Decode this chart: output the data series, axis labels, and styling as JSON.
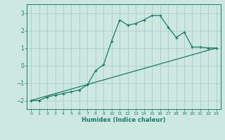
{
  "title": "",
  "xlabel": "Humidex (Indice chaleur)",
  "ylabel": "",
  "bg_color": "#cce8e0",
  "grid_color": "#aaccC4",
  "line_color": "#1a7a6a",
  "xlim": [
    -0.5,
    23.5
  ],
  "ylim": [
    -2.5,
    3.5
  ],
  "xticks": [
    0,
    1,
    2,
    3,
    4,
    5,
    6,
    7,
    8,
    9,
    10,
    11,
    12,
    13,
    14,
    15,
    16,
    17,
    18,
    19,
    20,
    21,
    22,
    23
  ],
  "yticks": [
    -2,
    -1,
    0,
    1,
    2,
    3
  ],
  "line1_x": [
    0,
    1,
    2,
    3,
    4,
    5,
    6,
    7,
    8,
    9,
    10,
    11,
    12,
    13,
    14,
    15,
    16,
    17,
    18,
    19,
    20,
    21,
    22,
    23
  ],
  "line1_y": [
    -2.0,
    -2.0,
    -1.8,
    -1.7,
    -1.6,
    -1.5,
    -1.4,
    -1.1,
    -0.3,
    0.05,
    1.4,
    2.6,
    2.3,
    2.4,
    2.6,
    2.85,
    2.85,
    2.2,
    1.6,
    1.9,
    1.05,
    1.05,
    1.0,
    1.0
  ],
  "line2_x": [
    0,
    23
  ],
  "line2_y": [
    -2.0,
    1.0
  ]
}
